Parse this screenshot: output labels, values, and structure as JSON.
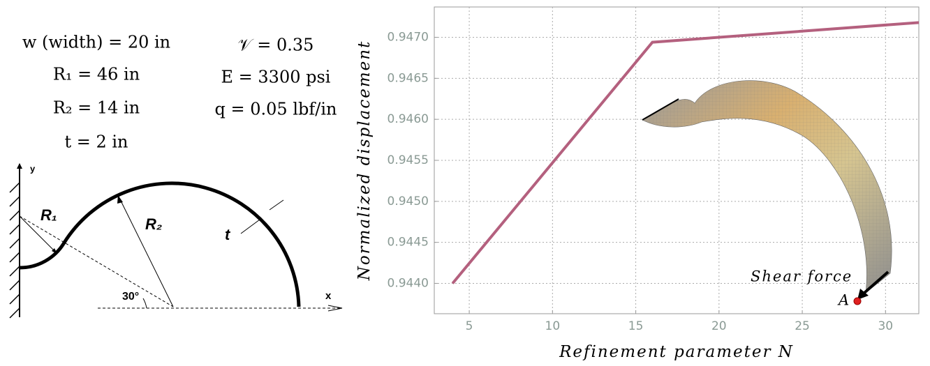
{
  "diagram": {
    "params": [
      "w (width) = 20 in",
      "R₁ = 46 in",
      "R₂ = 14 in",
      "t = 2 in",
      "𝒱 = 0.35",
      "E = 3300 psi",
      "q = 0.05 lbf/in"
    ],
    "labels": [
      "y",
      "x",
      "R₁",
      "R₂",
      "t",
      "30°"
    ]
  },
  "chart_data": {
    "type": "line",
    "x_label": "Refinement parameter N",
    "y_label": "Normalized displacement",
    "x": [
      4,
      16,
      32
    ],
    "series": [
      {
        "name": "Normalized displacement",
        "color": "#b4607e",
        "values": [
          0.944,
          0.94694,
          0.94718
        ]
      }
    ],
    "xlim": [
      2.9,
      32.0
    ],
    "ylim": [
      0.94363,
      0.94737
    ],
    "xticks": [
      5,
      10,
      15,
      20,
      25,
      30
    ],
    "yticks": [
      {
        "value": 0.944,
        "label": "0.9440"
      },
      0.9445,
      {
        "value": 0.945,
        "label": "0.9450"
      },
      0.9455,
      {
        "value": 0.946,
        "label": "0.9460"
      },
      0.9465,
      {
        "value": 0.947,
        "label": "0.9470"
      }
    ],
    "grid": true,
    "annotations": [
      "Shear force",
      "A"
    ]
  }
}
